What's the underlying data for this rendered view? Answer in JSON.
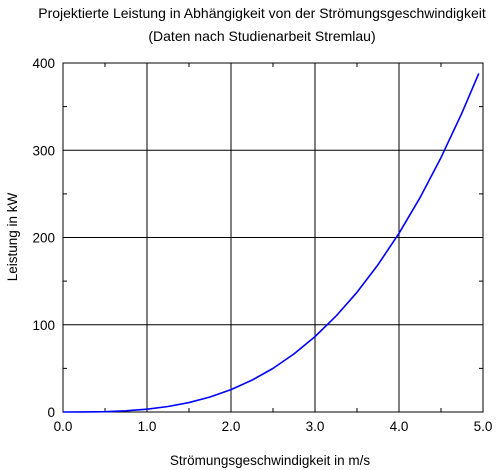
{
  "chart_data": {
    "type": "line",
    "title": "Projektierte Leistung in Abhängigkeit von der Strömungsgeschwindigkeit",
    "subtitle": "(Daten nach Studienarbeit Stremlau)",
    "xlabel": "Strömungsgeschwindigkeit in m/s",
    "ylabel": "Leistung in kW",
    "xlim": [
      0,
      5
    ],
    "ylim": [
      0,
      400
    ],
    "x_ticks": [
      "0.0",
      "1.0",
      "2.0",
      "3.0",
      "4.0",
      "5.0"
    ],
    "y_ticks": [
      "0",
      "100",
      "200",
      "300",
      "400"
    ],
    "grid": true,
    "series": [
      {
        "color": "#0000ff",
        "x": [
          0.0,
          0.25,
          0.5,
          0.75,
          1.0,
          1.25,
          1.5,
          1.75,
          2.0,
          2.25,
          2.5,
          2.75,
          3.0,
          3.25,
          3.5,
          3.75,
          4.0,
          4.25,
          4.5,
          4.75,
          4.95
        ],
        "y": [
          0.0,
          0.05,
          0.4,
          1.4,
          3.2,
          6.3,
          10.8,
          17.2,
          25.6,
          36.5,
          50.0,
          66.6,
          86.4,
          109.9,
          137.2,
          168.8,
          204.8,
          245.6,
          291.6,
          342.9,
          388.1
        ]
      }
    ]
  }
}
